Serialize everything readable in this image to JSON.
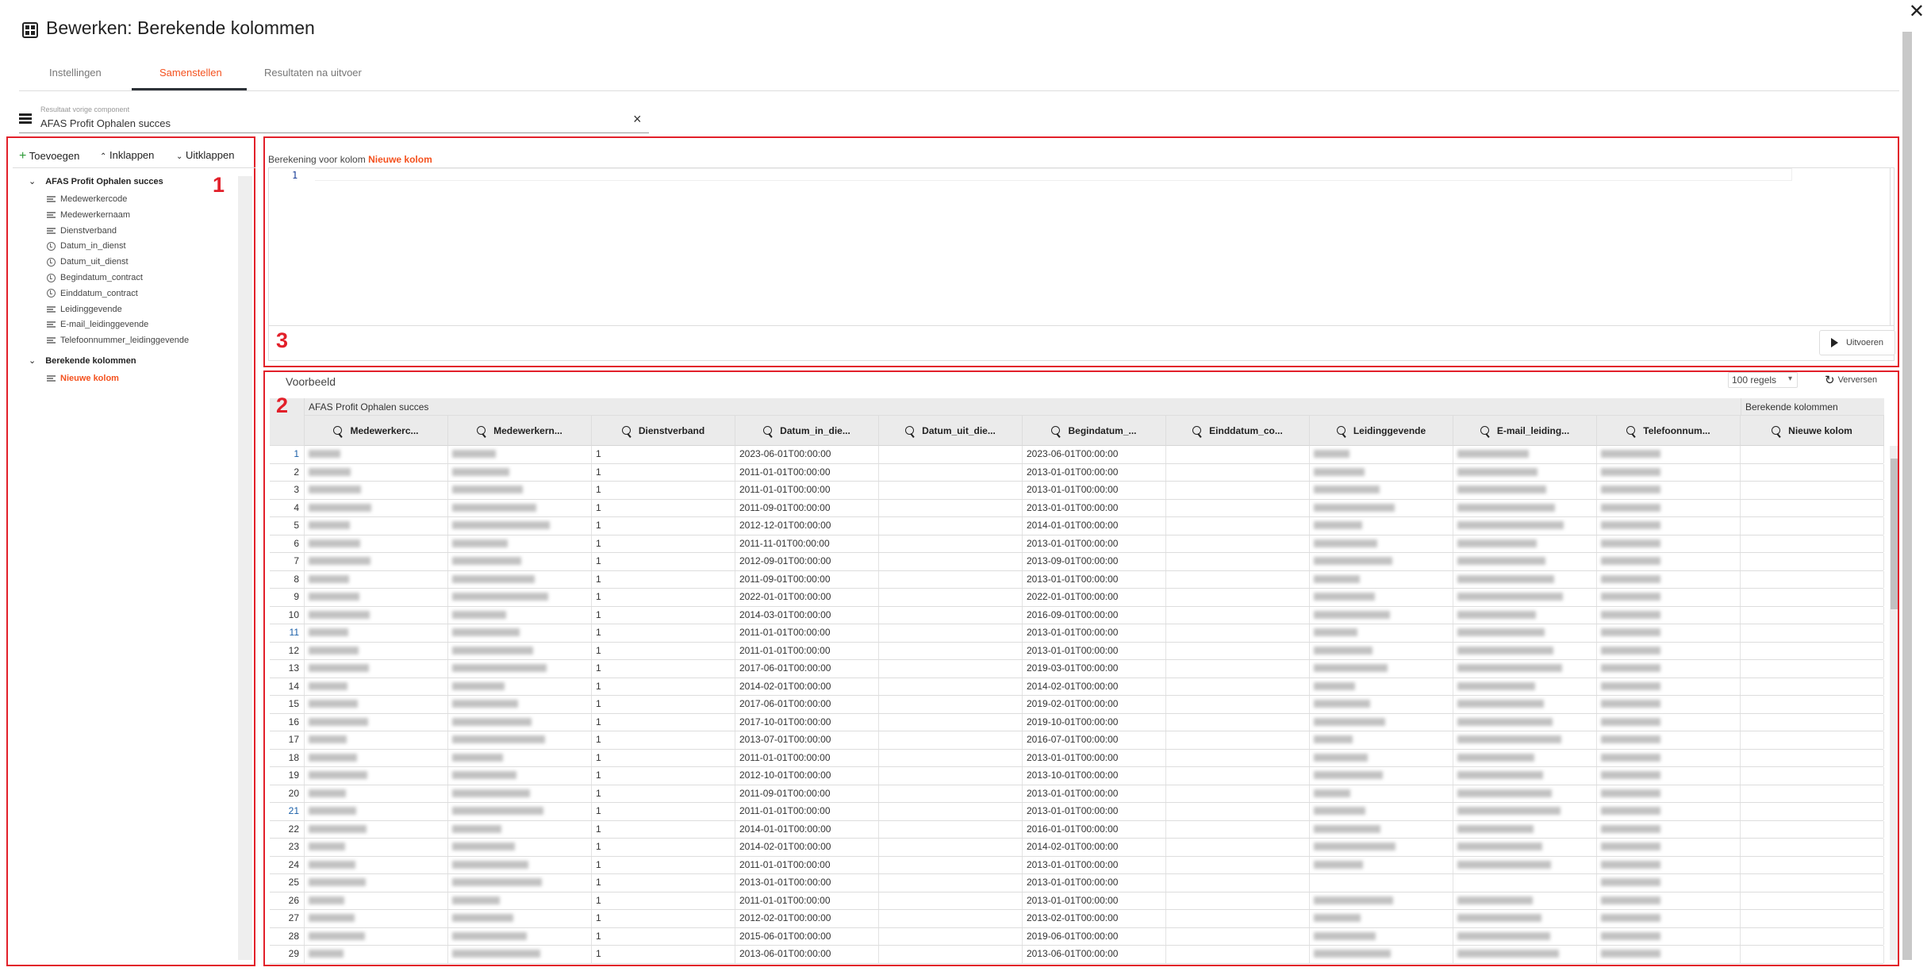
{
  "window": {
    "title": "Bewerken: Berekende kolommen",
    "close_icon": "close-icon",
    "title_icon": "grid-icon"
  },
  "tabs": [
    {
      "label": "Instellingen",
      "active": false
    },
    {
      "label": "Samenstellen",
      "active": true
    },
    {
      "label": "Resultaten na uitvoer",
      "active": false
    }
  ],
  "source_field": {
    "label": "Resultaat vorige component",
    "value": "AFAS Profit Ophalen succes",
    "clear": "×"
  },
  "colors": {
    "accent": "#f4511e",
    "annotation": "#e2202a",
    "header_bg": "#ebebeb"
  },
  "sidebar": {
    "toolbar": {
      "add": "Toevoegen",
      "collapse": "Inklappen",
      "expand": "Uitklappen"
    },
    "marker": "1",
    "groups": [
      {
        "label": "AFAS Profit Ophalen succes",
        "items": [
          {
            "label": "Medewerkercode",
            "icon": "text"
          },
          {
            "label": "Medewerkernaam",
            "icon": "text"
          },
          {
            "label": "Dienstverband",
            "icon": "text"
          },
          {
            "label": "Datum_in_dienst",
            "icon": "clock"
          },
          {
            "label": "Datum_uit_dienst",
            "icon": "clock"
          },
          {
            "label": "Begindatum_contract",
            "icon": "clock"
          },
          {
            "label": "Einddatum_contract",
            "icon": "clock"
          },
          {
            "label": "Leidinggevende",
            "icon": "text"
          },
          {
            "label": "E-mail_leidinggevende",
            "icon": "text"
          },
          {
            "label": "Telefoonnummer_leidinggevende",
            "icon": "text"
          }
        ]
      },
      {
        "label": "Berekende kolommen",
        "items": [
          {
            "label": "Nieuwe kolom",
            "icon": "text",
            "selected": true
          }
        ]
      }
    ]
  },
  "editor": {
    "label_prefix": "Berekening voor kolom",
    "column_name": "Nieuwe kolom",
    "line_number": "1",
    "marker": "3",
    "run_label": "Uitvoeren"
  },
  "preview": {
    "title": "Voorbeeld",
    "marker": "2",
    "rows_select": "100 regels",
    "refresh_label": "Verversen",
    "group_headers": [
      "AFAS Profit Ophalen succes",
      "Berekende kolommen"
    ],
    "columns": [
      "Medewerkerc...",
      "Medewerkern...",
      "Dienstverband",
      "Datum_in_die...",
      "Datum_uit_die...",
      "Begindatum_...",
      "Einddatum_co...",
      "Leidinggevende",
      "E-mail_leiding...",
      "Telefoonnum...",
      "Nieuwe kolom"
    ],
    "rows": [
      [
        "1",
        "1",
        "2023-06-01T00:00:00",
        "",
        "2023-06-01T00:00:00",
        ""
      ],
      [
        "2",
        "1",
        "2011-01-01T00:00:00",
        "",
        "2013-01-01T00:00:00",
        ""
      ],
      [
        "3",
        "1",
        "2011-01-01T00:00:00",
        "",
        "2013-01-01T00:00:00",
        ""
      ],
      [
        "4",
        "1",
        "2011-09-01T00:00:00",
        "",
        "2013-01-01T00:00:00",
        ""
      ],
      [
        "5",
        "1",
        "2012-12-01T00:00:00",
        "",
        "2014-01-01T00:00:00",
        ""
      ],
      [
        "6",
        "1",
        "2011-11-01T00:00:00",
        "",
        "2013-01-01T00:00:00",
        ""
      ],
      [
        "7",
        "1",
        "2012-09-01T00:00:00",
        "",
        "2013-09-01T00:00:00",
        ""
      ],
      [
        "8",
        "1",
        "2011-09-01T00:00:00",
        "",
        "2013-01-01T00:00:00",
        ""
      ],
      [
        "9",
        "1",
        "2022-01-01T00:00:00",
        "",
        "2022-01-01T00:00:00",
        ""
      ],
      [
        "10",
        "1",
        "2014-03-01T00:00:00",
        "",
        "2016-09-01T00:00:00",
        ""
      ],
      [
        "11",
        "1",
        "2011-01-01T00:00:00",
        "",
        "2013-01-01T00:00:00",
        ""
      ],
      [
        "12",
        "1",
        "2011-01-01T00:00:00",
        "",
        "2013-01-01T00:00:00",
        ""
      ],
      [
        "13",
        "1",
        "2017-06-01T00:00:00",
        "",
        "2019-03-01T00:00:00",
        ""
      ],
      [
        "14",
        "1",
        "2014-02-01T00:00:00",
        "",
        "2014-02-01T00:00:00",
        ""
      ],
      [
        "15",
        "1",
        "2017-06-01T00:00:00",
        "",
        "2019-02-01T00:00:00",
        ""
      ],
      [
        "16",
        "1",
        "2017-10-01T00:00:00",
        "",
        "2019-10-01T00:00:00",
        ""
      ],
      [
        "17",
        "1",
        "2013-07-01T00:00:00",
        "",
        "2016-07-01T00:00:00",
        ""
      ],
      [
        "18",
        "1",
        "2011-01-01T00:00:00",
        "",
        "2013-01-01T00:00:00",
        ""
      ],
      [
        "19",
        "1",
        "2012-10-01T00:00:00",
        "",
        "2013-10-01T00:00:00",
        ""
      ],
      [
        "20",
        "1",
        "2011-09-01T00:00:00",
        "",
        "2013-01-01T00:00:00",
        ""
      ],
      [
        "21",
        "1",
        "2011-01-01T00:00:00",
        "",
        "2013-01-01T00:00:00",
        ""
      ],
      [
        "22",
        "1",
        "2014-01-01T00:00:00",
        "",
        "2016-01-01T00:00:00",
        ""
      ],
      [
        "23",
        "1",
        "2014-02-01T00:00:00",
        "",
        "2014-02-01T00:00:00",
        ""
      ],
      [
        "24",
        "1",
        "2011-01-01T00:00:00",
        "",
        "2013-01-01T00:00:00",
        ""
      ],
      [
        "25",
        "1",
        "2013-01-01T00:00:00",
        "",
        "2013-01-01T00:00:00",
        ""
      ],
      [
        "26",
        "1",
        "2011-01-01T00:00:00",
        "",
        "2013-01-01T00:00:00",
        ""
      ],
      [
        "27",
        "1",
        "2012-02-01T00:00:00",
        "",
        "2013-02-01T00:00:00",
        ""
      ],
      [
        "28",
        "1",
        "2015-06-01T00:00:00",
        "",
        "2019-06-01T00:00:00",
        ""
      ],
      [
        "29",
        "1",
        "2013-06-01T00:00:00",
        "",
        "2013-06-01T00:00:00",
        ""
      ]
    ]
  }
}
